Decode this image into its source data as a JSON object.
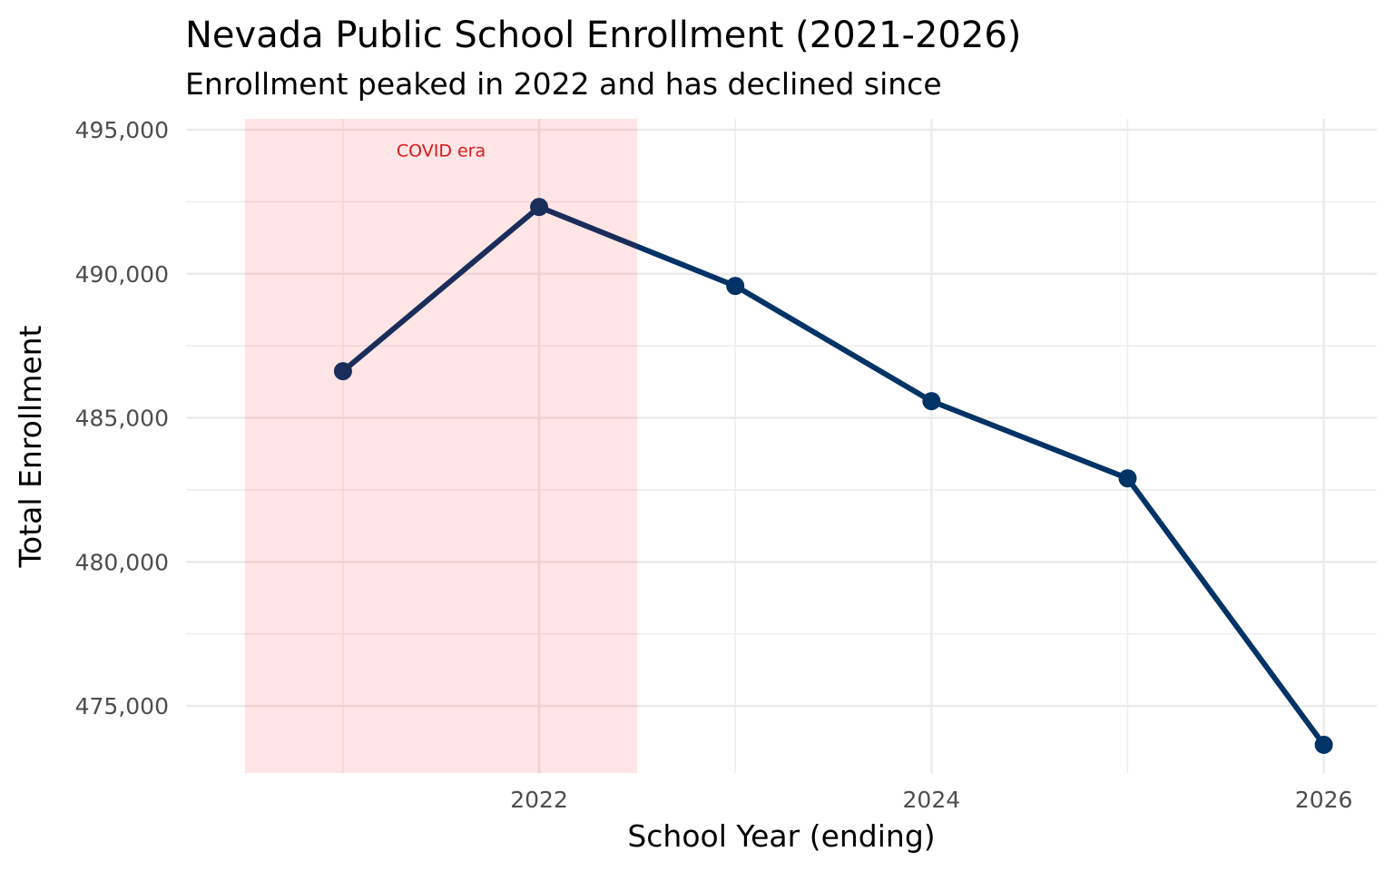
{
  "chart_data": {
    "type": "line",
    "title": "Nevada Public School Enrollment (2021-2026)",
    "subtitle": "Enrollment peaked in 2022 and has declined since",
    "xlabel": "School Year (ending)",
    "ylabel": "Total Enrollment",
    "x": [
      2021,
      2022,
      2023,
      2024,
      2025,
      2026
    ],
    "values": [
      486620,
      492320,
      489580,
      485580,
      482900,
      473650
    ],
    "xlim": [
      2020.2,
      2026.27
    ],
    "ylim": [
      472670,
      495380
    ],
    "x_ticks": [
      2022,
      2024,
      2026
    ],
    "x_tick_labels": [
      "2022",
      "2024",
      "2026"
    ],
    "y_ticks": [
      475000,
      480000,
      485000,
      490000,
      495000
    ],
    "y_tick_labels": [
      "475,000",
      "480,000",
      "485,000",
      "490,000",
      "495,000"
    ],
    "grid": true,
    "annotation": {
      "text": "COVID era",
      "x": 2021.5,
      "y": 494300,
      "color": "#d7191c"
    },
    "shaded_region": {
      "xmin": 2020.5,
      "xmax": 2022.5,
      "color": "#ff0000",
      "opacity": 0.1
    },
    "line_color": "#003366"
  }
}
